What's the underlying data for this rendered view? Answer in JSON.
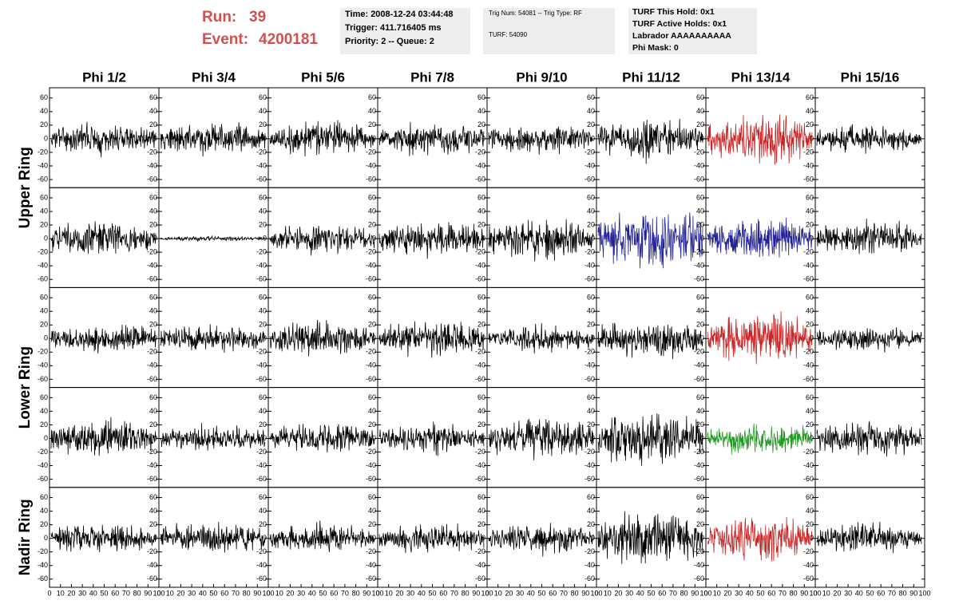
{
  "header": {
    "run_label": "Run:",
    "run": 39,
    "event_label": "Event:",
    "event": 4200181
  },
  "info_boxes": [
    {
      "lines": [
        "Time: 2008-12-24 03:44:48",
        "Trigger: 411.716405 ms",
        "Priority: 2 -- Queue: 2"
      ]
    },
    {
      "lines": [
        "Trig Num: 54081 -- Trig Type: RF",
        "TURF: 54090"
      ]
    },
    {
      "lines": [
        "TURF This Hold: 0x1",
        "TURF Active Holds: 0x1",
        "Labrador AAAAAAAAAA",
        "Phi Mask: 0"
      ]
    }
  ],
  "chart_data": {
    "type": "waveform-grid",
    "columns": [
      "Phi 1/2",
      "Phi 3/4",
      "Phi 5/6",
      "Phi 7/8",
      "Phi 9/10",
      "Phi 11/12",
      "Phi 13/14",
      "Phi 15/16"
    ],
    "row_labels": [
      "Upper Ring",
      "Lower Ring",
      "Nadir Ring"
    ],
    "ylim": [
      -72,
      75
    ],
    "yticks": [
      -60,
      -40,
      -20,
      0,
      20,
      40,
      60
    ],
    "xlim": [
      0,
      100
    ],
    "xticks": [
      0,
      10,
      20,
      30,
      40,
      50,
      60,
      70,
      80,
      90,
      100
    ],
    "panels": [
      [
        {
          "amplitude": 30,
          "color": "#000000"
        },
        {
          "amplitude": 30,
          "color": "#000000"
        },
        {
          "amplitude": 35,
          "color": "#000000"
        },
        {
          "amplitude": 30,
          "color": "#000000"
        },
        {
          "amplitude": 30,
          "color": "#000000"
        },
        {
          "amplitude": 40,
          "color": "#000000"
        },
        {
          "amplitude": 50,
          "color": "#cc2222"
        },
        {
          "amplitude": 30,
          "color": "#000000"
        }
      ],
      [
        {
          "amplitude": 35,
          "color": "#000000"
        },
        {
          "amplitude": 5,
          "color": "#000000"
        },
        {
          "amplitude": 30,
          "color": "#000000"
        },
        {
          "amplitude": 35,
          "color": "#000000"
        },
        {
          "amplitude": 40,
          "color": "#000000"
        },
        {
          "amplitude": 60,
          "color": "#222299"
        },
        {
          "amplitude": 40,
          "color": "#222299"
        },
        {
          "amplitude": 35,
          "color": "#000000"
        }
      ],
      [
        {
          "amplitude": 30,
          "color": "#000000"
        },
        {
          "amplitude": 25,
          "color": "#000000"
        },
        {
          "amplitude": 35,
          "color": "#000000"
        },
        {
          "amplitude": 35,
          "color": "#000000"
        },
        {
          "amplitude": 25,
          "color": "#000000"
        },
        {
          "amplitude": 40,
          "color": "#000000"
        },
        {
          "amplitude": 50,
          "color": "#cc2222"
        },
        {
          "amplitude": 25,
          "color": "#000000"
        }
      ],
      [
        {
          "amplitude": 35,
          "color": "#000000"
        },
        {
          "amplitude": 25,
          "color": "#000000"
        },
        {
          "amplitude": 30,
          "color": "#000000"
        },
        {
          "amplitude": 30,
          "color": "#000000"
        },
        {
          "amplitude": 40,
          "color": "#000000"
        },
        {
          "amplitude": 55,
          "color": "#000000"
        },
        {
          "amplitude": 30,
          "color": "#229922"
        },
        {
          "amplitude": 35,
          "color": "#000000"
        }
      ],
      [
        {
          "amplitude": 30,
          "color": "#000000"
        },
        {
          "amplitude": 30,
          "color": "#000000"
        },
        {
          "amplitude": 30,
          "color": "#000000"
        },
        {
          "amplitude": 30,
          "color": "#000000"
        },
        {
          "amplitude": 30,
          "color": "#000000"
        },
        {
          "amplitude": 55,
          "color": "#000000"
        },
        {
          "amplitude": 45,
          "color": "#cc2222"
        },
        {
          "amplitude": 30,
          "color": "#000000"
        }
      ]
    ]
  }
}
